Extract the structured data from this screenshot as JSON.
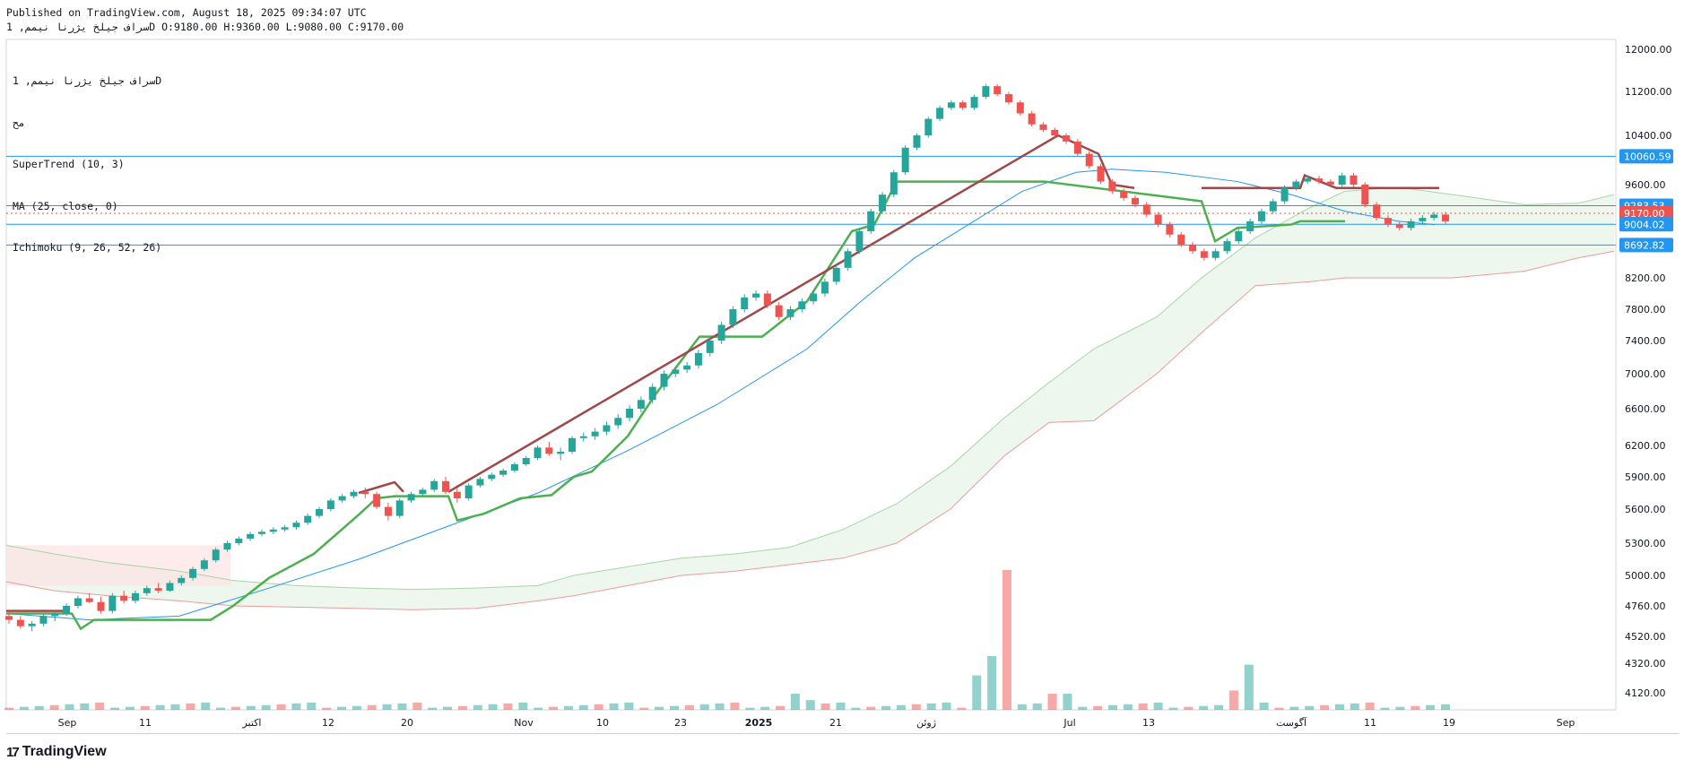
{
  "header": {
    "published": "Published on TradingView.com, August 18, 2025 09:34:07 UTC",
    "ohlc_line": "سراف جیلخ یژرنا نیمم, 1D O:9180.00 H:9360.00 L:9080.00 C:9170.00"
  },
  "legend": {
    "line1": "سراف جیلخ یژرنا نیمم, 1D",
    "line2": "مح",
    "line3": "SuperTrend (10, 3)",
    "line4": "MA (25, close, 0)",
    "line5": "Ichimoku (9, 26, 52, 26)"
  },
  "footer": {
    "logo_text": "TradingView",
    "logo_icon": "tradingview-logo-icon"
  },
  "colors": {
    "up": "#26a69a",
    "down": "#ef5350",
    "supertrend_up": "#4caf50",
    "supertrend_down": "#a04848",
    "ma": "#2196f3",
    "cloud_bull": "#e8f5e9",
    "cloud_bear": "#fde3e3",
    "hline": "#2196f3"
  },
  "chart_data": {
    "type": "candlestick",
    "ylim": [
      4000,
      12000
    ],
    "y_ticks": [
      12000,
      11200,
      10400,
      9600,
      8200,
      7800,
      7400,
      7000,
      6600,
      6200,
      5900,
      5600,
      5300,
      5000,
      4760,
      4520,
      4320,
      4120
    ],
    "y_tick_labels": [
      "12000.00",
      "11200.00",
      "10400.00",
      "9600.00",
      "8200.00",
      "7800.00",
      "7400.00",
      "7000.00",
      "6600.00",
      "6200.00",
      "5900.00",
      "5600.00",
      "5300.00",
      "5000.00",
      "4760.00",
      "4520.00",
      "4320.00",
      "4120.00"
    ],
    "x_labels": [
      "Sep",
      "11",
      "اکتبر",
      "12",
      "20",
      "Nov",
      "10",
      "23",
      "2025",
      "21",
      "ژوئن",
      "Jul",
      "13",
      "آگوست",
      "11",
      "19",
      "Sep"
    ],
    "price_labels": [
      {
        "value": 10060.59,
        "label": "10060.59",
        "color": "#2196f3"
      },
      {
        "value": 9283.53,
        "label": "9283.53",
        "color": "#2196f3"
      },
      {
        "value": 9170.0,
        "label": "9170.00",
        "color": "#ef5350"
      },
      {
        "value": 9004.02,
        "label": "9004.02",
        "color": "#2196f3"
      },
      {
        "value": 8692.82,
        "label": "8692.82",
        "color": "#2196f3"
      }
    ],
    "candles": [
      [
        4680,
        4720,
        4620,
        4650,
        20
      ],
      [
        4650,
        4680,
        4580,
        4600,
        15
      ],
      [
        4600,
        4640,
        4560,
        4620,
        12
      ],
      [
        4620,
        4700,
        4600,
        4680,
        18
      ],
      [
        4680,
        4720,
        4640,
        4700,
        16
      ],
      [
        4700,
        4780,
        4680,
        4760,
        20
      ],
      [
        4760,
        4840,
        4740,
        4820,
        25
      ],
      [
        4820,
        4860,
        4780,
        4790,
        22
      ],
      [
        4790,
        4830,
        4700,
        4720,
        30
      ],
      [
        4720,
        4860,
        4700,
        4840,
        40
      ],
      [
        4840,
        4880,
        4780,
        4800,
        35
      ],
      [
        4800,
        4880,
        4780,
        4860,
        28
      ],
      [
        4860,
        4920,
        4840,
        4900,
        30
      ],
      [
        4900,
        4940,
        4860,
        4880,
        22
      ],
      [
        4880,
        4960,
        4870,
        4940,
        25
      ],
      [
        4940,
        5000,
        4920,
        4980,
        30
      ],
      [
        4980,
        5080,
        4960,
        5060,
        40
      ],
      [
        5060,
        5160,
        5040,
        5140,
        45
      ],
      [
        5140,
        5260,
        5120,
        5240,
        50
      ],
      [
        5240,
        5320,
        5220,
        5300,
        40
      ],
      [
        5300,
        5360,
        5280,
        5340,
        38
      ],
      [
        5340,
        5400,
        5320,
        5380,
        35
      ],
      [
        5380,
        5420,
        5360,
        5400,
        30
      ],
      [
        5400,
        5440,
        5380,
        5420,
        28
      ],
      [
        5420,
        5460,
        5400,
        5440,
        32
      ],
      [
        5440,
        5500,
        5420,
        5480,
        30
      ],
      [
        5480,
        5560,
        5460,
        5540,
        35
      ],
      [
        5540,
        5620,
        5520,
        5600,
        40
      ],
      [
        5600,
        5700,
        5580,
        5680,
        45
      ],
      [
        5680,
        5740,
        5660,
        5720,
        50
      ],
      [
        5720,
        5780,
        5700,
        5760,
        60
      ],
      [
        5760,
        5800,
        5700,
        5740,
        70
      ],
      [
        5740,
        5760,
        5600,
        5620,
        80
      ],
      [
        5620,
        5660,
        5500,
        5540,
        75
      ],
      [
        5540,
        5700,
        5520,
        5680,
        60
      ],
      [
        5680,
        5760,
        5660,
        5740,
        55
      ],
      [
        5740,
        5800,
        5720,
        5780,
        50
      ],
      [
        5780,
        5880,
        5760,
        5860,
        65
      ],
      [
        5860,
        5900,
        5740,
        5760,
        70
      ],
      [
        5760,
        5800,
        5660,
        5700,
        55
      ],
      [
        5700,
        5840,
        5680,
        5820,
        50
      ],
      [
        5820,
        5900,
        5800,
        5880,
        60
      ],
      [
        5880,
        5940,
        5860,
        5920,
        58
      ],
      [
        5920,
        5980,
        5900,
        5960,
        60
      ],
      [
        5960,
        6040,
        5940,
        6020,
        70
      ],
      [
        6020,
        6100,
        6000,
        6080,
        75
      ],
      [
        6080,
        6200,
        6060,
        6180,
        80
      ],
      [
        6180,
        6240,
        6100,
        6120,
        90
      ],
      [
        6120,
        6180,
        6060,
        6140,
        85
      ],
      [
        6140,
        6300,
        6120,
        6280,
        100
      ]
    ],
    "volume_ylim": [
      0,
      1300
    ]
  }
}
